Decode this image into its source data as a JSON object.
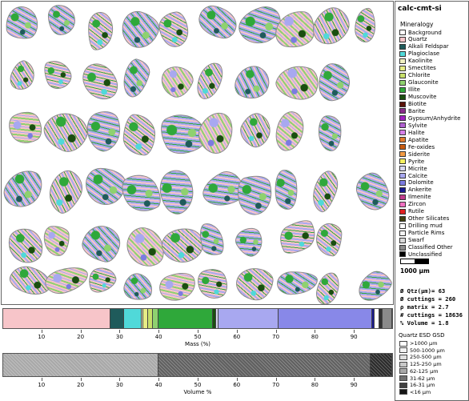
{
  "sample_name": "calc-cmt-si",
  "legend_title": "Mineralogy",
  "legend": [
    {
      "label": "Background",
      "color": "#ffffff"
    },
    {
      "label": "Quartz",
      "color": "#f7c5c9"
    },
    {
      "label": "Alkali Feldspar",
      "color": "#1f5b5b"
    },
    {
      "label": "Plagioclase",
      "color": "#50d9d9"
    },
    {
      "label": "Kaolinite",
      "color": "#f0f0c0"
    },
    {
      "label": "Smectites",
      "color": "#e6ec86"
    },
    {
      "label": "Chlorite",
      "color": "#c8e06a"
    },
    {
      "label": "Glauconite",
      "color": "#8fd16f"
    },
    {
      "label": "Illite",
      "color": "#2fa83a"
    },
    {
      "label": "Muscovite",
      "color": "#1a4e10"
    },
    {
      "label": "Biotite",
      "color": "#5a1208"
    },
    {
      "label": "Barite",
      "color": "#8a2a8a"
    },
    {
      "label": "Gypsum/Anhydrite",
      "color": "#a020c0"
    },
    {
      "label": "Sylvite",
      "color": "#b060d0"
    },
    {
      "label": "Halite",
      "color": "#d580e8"
    },
    {
      "label": "Apatite",
      "color": "#e07a30"
    },
    {
      "label": "Fe-oxides",
      "color": "#c85a10"
    },
    {
      "label": "Siderite",
      "color": "#f29a44"
    },
    {
      "label": "Pyrite",
      "color": "#f5f060"
    },
    {
      "label": "Micrite",
      "color": "#d8d8f0"
    },
    {
      "label": "Calcite",
      "color": "#a8a8f0"
    },
    {
      "label": "Dolomite",
      "color": "#7b7be0"
    },
    {
      "label": "Ankerite",
      "color": "#1a1a90"
    },
    {
      "label": "Ilmenite",
      "color": "#c03c8c"
    },
    {
      "label": "Zircon",
      "color": "#f070c0"
    },
    {
      "label": "Rutile",
      "color": "#e02020"
    },
    {
      "label": "Other Silicates",
      "color": "#404010"
    },
    {
      "label": "Drilling mud",
      "color": "#ffffff"
    },
    {
      "label": "Particle Rims",
      "color": "#f4f4f4"
    },
    {
      "label": "Swarf",
      "color": "#d9d9d9"
    },
    {
      "label": "Classified Other",
      "color": "#8a8a8a"
    },
    {
      "label": "Unclassified",
      "color": "#000000"
    }
  ],
  "scale_label": "1000 µm",
  "stats": [
    "Ø Qtz(µm)= 63",
    "Ø cuttings = 260",
    "ρ matrix   = 2.7",
    "# cuttings = 18636",
    "% Volume   = 1.8"
  ],
  "gsd_title": "Quartz ESD GSD",
  "gsd": [
    {
      "label": ">1000 µm",
      "color": "#ffffff"
    },
    {
      "label": "500-1000 µm",
      "color": "#f2f2f2"
    },
    {
      "label": "250-500 µm",
      "color": "#e0e0e0"
    },
    {
      "label": "125-250 µm",
      "color": "#c8c8c8"
    },
    {
      "label": "62-125 µm",
      "color": "#a8a8a8"
    },
    {
      "label": "31-62 µm",
      "color": "#707070"
    },
    {
      "label": "16-31 µm",
      "color": "#404040"
    },
    {
      "label": "<16 µm",
      "color": "#151515"
    }
  ],
  "mass_bar": {
    "axis_title": "Mass (%)",
    "ticks": [
      10,
      20,
      30,
      40,
      50,
      60,
      70,
      80,
      90
    ],
    "segments": [
      {
        "mineral": "Quartz",
        "percent": 27.5,
        "color": "#f7c5c9"
      },
      {
        "mineral": "Alkali Feldspar",
        "percent": 3.5,
        "color": "#1f5b5b"
      },
      {
        "mineral": "Plagioclase",
        "percent": 4.5,
        "color": "#50d9d9"
      },
      {
        "mineral": "Kaolinite",
        "percent": 0.5,
        "color": "#f0f0c0"
      },
      {
        "mineral": "Smectites",
        "percent": 1.2,
        "color": "#e6ec86"
      },
      {
        "mineral": "Chlorite",
        "percent": 1.3,
        "color": "#c8e06a"
      },
      {
        "mineral": "Glauconite",
        "percent": 1.5,
        "color": "#8fd16f"
      },
      {
        "mineral": "Illite",
        "percent": 14.0,
        "color": "#2fa83a"
      },
      {
        "mineral": "Muscovite",
        "percent": 0.8,
        "color": "#1a4e10"
      },
      {
        "mineral": "Micrite",
        "percent": 0.5,
        "color": "#d8d8f0"
      },
      {
        "mineral": "Calcite",
        "percent": 15.5,
        "color": "#a8a8f0"
      },
      {
        "mineral": "Dolomite",
        "percent": 24.0,
        "color": "#8888e8"
      },
      {
        "mineral": "Ankerite",
        "percent": 0.7,
        "color": "#1a1a90"
      },
      {
        "mineral": "Drilling mud",
        "percent": 1.2,
        "color": "#ffffff"
      },
      {
        "mineral": "Other",
        "percent": 0.8,
        "color": "#333333"
      },
      {
        "mineral": "Classified Other",
        "percent": 2.5,
        "color": "#8a8a8a"
      }
    ]
  },
  "volume_bar": {
    "axis_title": "Volume %",
    "ticks": [
      10,
      20,
      30,
      40,
      50,
      60,
      70,
      80,
      90
    ],
    "segments": [
      {
        "size_class": "62-125 µm",
        "percent": 40.0,
        "color": "#a8a8a8"
      },
      {
        "size_class": "31-62 µm",
        "percent": 54.5,
        "color": "#606060"
      },
      {
        "size_class": "16-31 µm",
        "percent": 5.5,
        "color": "#2a2a2a"
      }
    ]
  }
}
